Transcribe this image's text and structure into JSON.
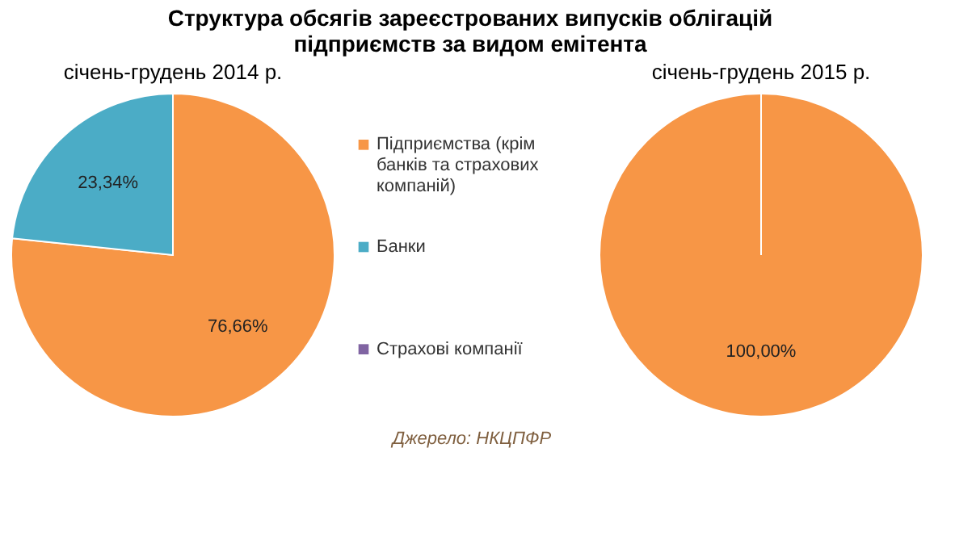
{
  "chart_data": {
    "type": "pie",
    "title": "Структура обсягів зареєстрованих випусків облігацій підприємств за видом емітента",
    "categories": [
      "Підприємства (крім банків та страхових компаній)",
      "Банки",
      "Страхові компанії"
    ],
    "colors": [
      "#f79646",
      "#4bacc6",
      "#8064a2"
    ],
    "legend": "right",
    "annotations": [
      "Джерело: НКЦПФР"
    ],
    "series": [
      {
        "name": "січень-грудень 2014 р.",
        "values": [
          76.66,
          23.34,
          0
        ],
        "value_labels": [
          "76,66%",
          "23,34%",
          null
        ]
      },
      {
        "name": "січень-грудень 2015 р.",
        "values": [
          100,
          0,
          0
        ],
        "value_labels": [
          "100,00%",
          null,
          null
        ]
      }
    ]
  }
}
